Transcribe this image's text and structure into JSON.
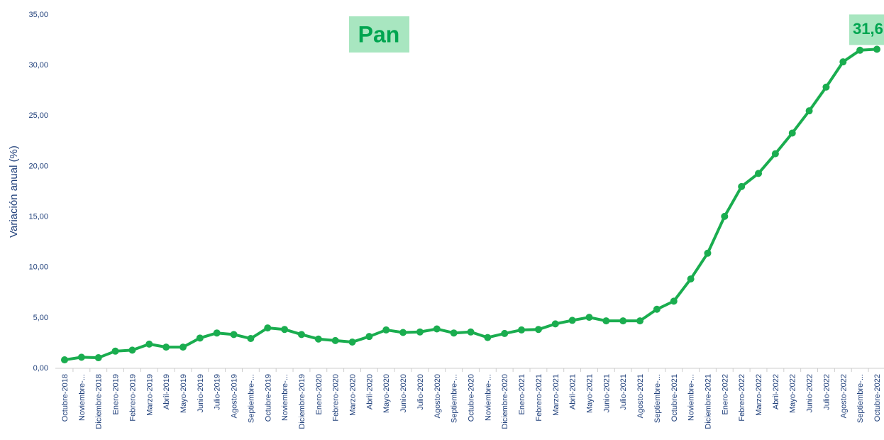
{
  "chart_data": {
    "type": "line",
    "title": "Pan",
    "y_label": "Variación anual (%)",
    "categories": [
      "Octubre-2018",
      "Noviembre-...",
      "Diciembre-2018",
      "Enero-2019",
      "Febrero-2019",
      "Marzo-2019",
      "Abril-2019",
      "Mayo-2019",
      "Junio-2019",
      "Julio-2019",
      "Agosto-2019",
      "Septiembre-...",
      "Octubre-2019",
      "Noviembre-...",
      "Diciembre-2019",
      "Enero-2020",
      "Febrero-2020",
      "Marzo-2020",
      "Abril-2020",
      "Mayo-2020",
      "Junio-2020",
      "Julio-2020",
      "Agosto-2020",
      "Septiembre-...",
      "Octubre-2020",
      "Noviembre-...",
      "Diciembre-2020",
      "Enero-2021",
      "Febrero-2021",
      "Marzo-2021",
      "Abril-2021",
      "Mayo-2021",
      "Junio-2021",
      "Julio-2021",
      "Agosto-2021",
      "Septiembre-...",
      "Octubre-2021",
      "Noviembre-...",
      "Diciembre-2021",
      "Enero-2022",
      "Febrero-2022",
      "Marzo-2022",
      "Abril-2022",
      "Mayo-2022",
      "Junio-2022",
      "Julio-2022",
      "Agosto-2022",
      "Septiembre-...",
      "Octubre-2022"
    ],
    "series": [
      {
        "name": "Pan",
        "color": "#1aad4f",
        "values": [
          0.84,
          1.1,
          1.05,
          1.7,
          1.8,
          2.4,
          2.1,
          2.1,
          3.0,
          3.5,
          3.35,
          2.95,
          4.0,
          3.85,
          3.35,
          2.9,
          2.75,
          2.6,
          3.15,
          3.8,
          3.55,
          3.6,
          3.9,
          3.5,
          3.6,
          3.05,
          3.45,
          3.8,
          3.85,
          4.4,
          4.75,
          5.05,
          4.7,
          4.7,
          4.7,
          5.85,
          6.65,
          8.85,
          11.4,
          15.05,
          18.0,
          19.3,
          21.25,
          23.3,
          25.5,
          27.85,
          30.35,
          31.5,
          31.6
        ],
        "value_labels": [
          null,
          null,
          null,
          null,
          null,
          null,
          null,
          null,
          null,
          null,
          null,
          null,
          null,
          null,
          null,
          null,
          null,
          null,
          null,
          null,
          null,
          null,
          null,
          null,
          null,
          null,
          null,
          null,
          null,
          null,
          null,
          null,
          null,
          null,
          null,
          null,
          null,
          null,
          null,
          null,
          null,
          null,
          null,
          null,
          null,
          null,
          null,
          null,
          "31,6"
        ]
      }
    ],
    "ylim": [
      0,
      35
    ],
    "yticks": [
      {
        "value": 0,
        "label": "0,00"
      },
      {
        "value": 5,
        "label": "5,00"
      },
      {
        "value": 10,
        "label": "10,00"
      },
      {
        "value": 15,
        "label": "15,00"
      },
      {
        "value": 20,
        "label": "20,00"
      },
      {
        "value": 25,
        "label": "25,00"
      },
      {
        "value": 30,
        "label": "30,00"
      },
      {
        "value": 35,
        "label": "35,00"
      }
    ],
    "grid": false
  }
}
